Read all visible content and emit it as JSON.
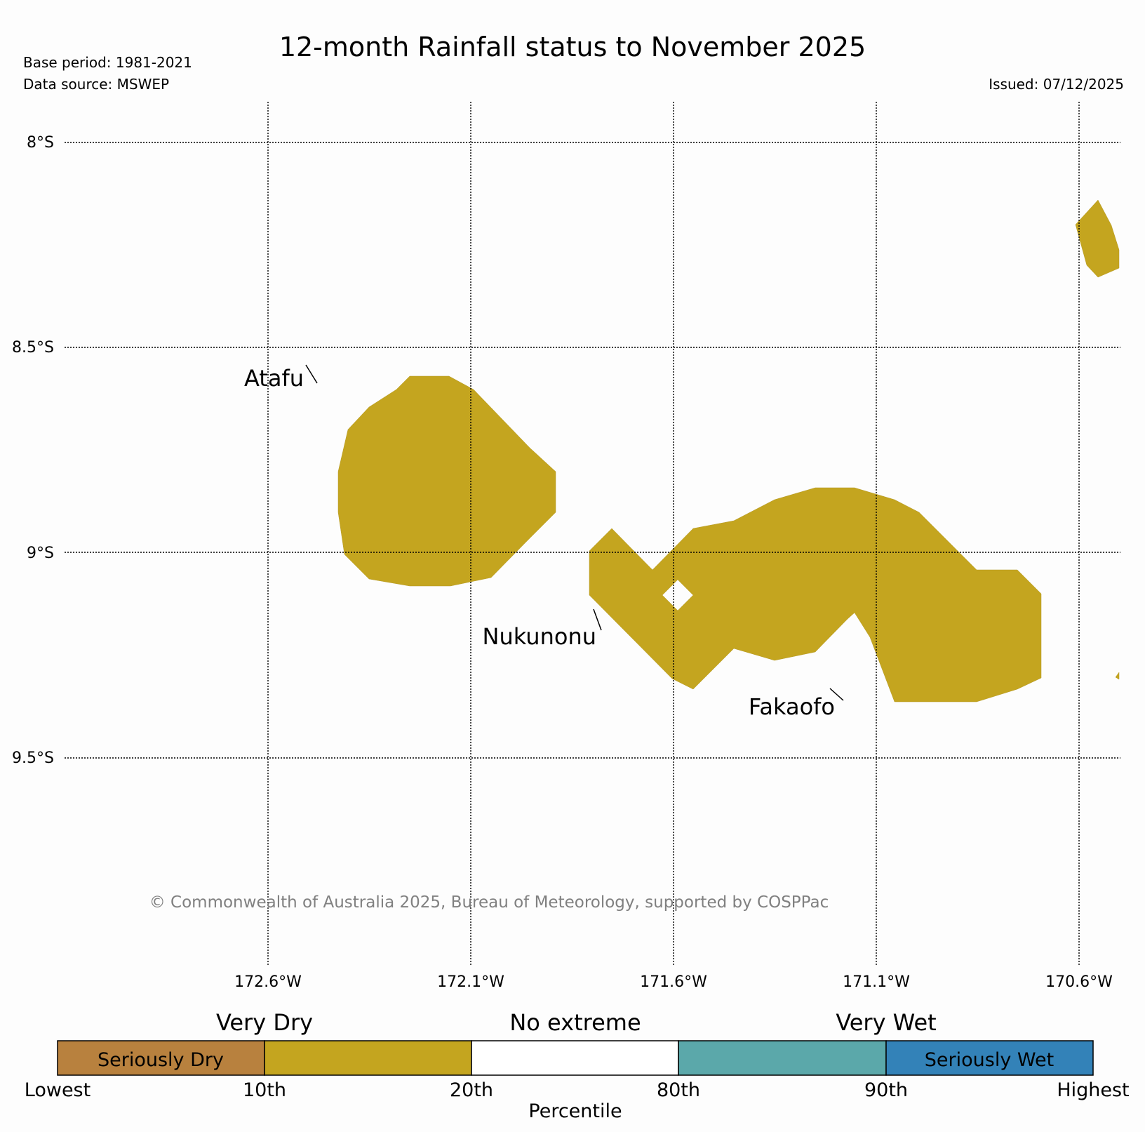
{
  "title": "12-month Rainfall status to November 2025",
  "base_period": "Base period: 1981-2021",
  "data_source": "Data source: MSWEP",
  "issued": "Issued: 07/12/2025",
  "copyright": "© Commonwealth of Australia 2025, Bureau of Meteorology, supported by COSPPac",
  "lat_labels": [
    "8°S",
    "8.5°S",
    "9°S",
    "9.5°S"
  ],
  "lon_labels": [
    "172.6°W",
    "172.1°W",
    "171.6°W",
    "171.1°W",
    "170.6°W"
  ],
  "places": [
    {
      "name": "Atafu"
    },
    {
      "name": "Nukunonu"
    },
    {
      "name": "Fakaofo"
    }
  ],
  "legend": {
    "group_labels": [
      "Very Dry",
      "No extreme",
      "Very Wet"
    ],
    "segments": [
      {
        "label": "Seriously Dry",
        "color": "#b8813e"
      },
      {
        "label": "",
        "color": "#c4a51f"
      },
      {
        "label": "",
        "color": "#ffffff"
      },
      {
        "label": "",
        "color": "#5ba8aa"
      },
      {
        "label": "Seriously Wet",
        "color": "#3382b8"
      }
    ],
    "tick_labels": [
      "Lowest",
      "10th",
      "20th",
      "80th",
      "90th",
      "Highest"
    ],
    "axis_label": "Percentile"
  },
  "colors": {
    "very_dry": "#c4a51f",
    "seriously_dry": "#b8813e",
    "very_wet": "#5ba8aa",
    "seriously_wet": "#3382b8",
    "grid": "#000000",
    "copyright_text": "#808080"
  }
}
